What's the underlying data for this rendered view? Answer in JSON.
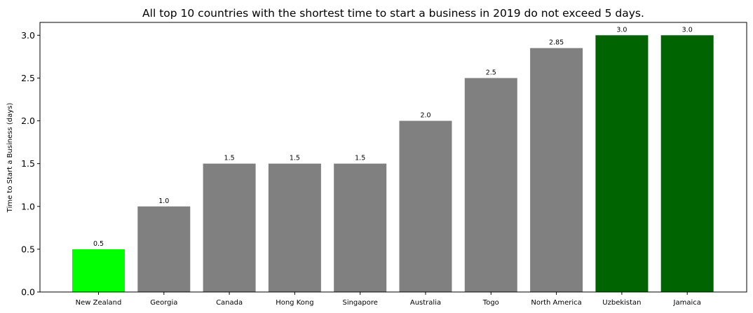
{
  "chart_data": {
    "type": "bar",
    "title": "All top 10 countries with the shortest time to start a business in 2019 do not exceed 5 days.",
    "xlabel": "",
    "ylabel": "Time to Start a Business (days)",
    "categories": [
      "New Zealand",
      "Georgia",
      "Canada",
      "Hong Kong",
      "Singapore",
      "Australia",
      "Togo",
      "North America",
      "Uzbekistan",
      "Jamaica"
    ],
    "values": [
      0.5,
      1.0,
      1.5,
      1.5,
      1.5,
      2.0,
      2.5,
      2.85,
      3.0,
      3.0
    ],
    "value_labels": [
      "0.5",
      "1.0",
      "1.5",
      "1.5",
      "1.5",
      "2.0",
      "2.5",
      "2.85",
      "3.0",
      "3.0"
    ],
    "bar_colors": [
      "#00ff00",
      "#808080",
      "#808080",
      "#808080",
      "#808080",
      "#808080",
      "#808080",
      "#808080",
      "#006400",
      "#006400"
    ],
    "ylim": [
      0,
      3.15
    ],
    "yticks": [
      "0.0",
      "0.5",
      "1.0",
      "1.5",
      "2.0",
      "2.5",
      "3.0"
    ],
    "grid": false,
    "legend": "none"
  }
}
